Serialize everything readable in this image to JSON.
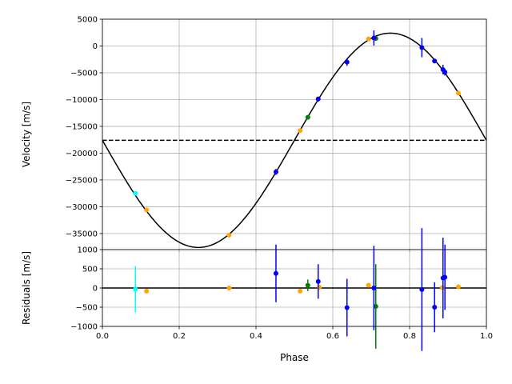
{
  "chart_data": [
    {
      "type": "scatter",
      "panel": "velocity",
      "xlabel": "",
      "ylabel": "Velocity [m/s]",
      "xlim": [
        0.0,
        1.0
      ],
      "ylim": [
        -38000,
        5000
      ],
      "xticks": [
        0.0,
        0.2,
        0.4,
        0.6,
        0.8,
        1.0
      ],
      "yticks": [
        -35000,
        -30000,
        -25000,
        -20000,
        -15000,
        -10000,
        -5000,
        0,
        5000
      ],
      "grid": true,
      "systemic_velocity": -17600,
      "model": {
        "offset": -17600,
        "amplitude": 20000,
        "phase_of_min": 0.25
      },
      "series": [
        {
          "color": "#00ffff",
          "points": [
            [
              0.086,
              -27500,
              0
            ]
          ]
        },
        {
          "color": "#ffa500",
          "points": [
            [
              0.115,
              -30600,
              0
            ],
            [
              0.33,
              -35300,
              0
            ],
            [
              0.515,
              -15800,
              0
            ],
            [
              0.693,
              1300,
              0
            ],
            [
              0.927,
              -8800,
              0
            ]
          ]
        },
        {
          "color": "#008000",
          "points": [
            [
              0.535,
              -13300,
              0
            ],
            [
              0.712,
              1400,
              0
            ]
          ]
        },
        {
          "color": "#0000ff",
          "points": [
            [
              0.452,
              -23500,
              550
            ],
            [
              0.562,
              -9900,
              450
            ],
            [
              0.637,
              -3000,
              700
            ],
            [
              0.707,
              1500,
              1400
            ],
            [
              0.832,
              -300,
              1800
            ],
            [
              0.865,
              -2800,
              400
            ],
            [
              0.887,
              -4400,
              900
            ],
            [
              0.892,
              -4900,
              600
            ]
          ]
        }
      ]
    },
    {
      "type": "scatter",
      "panel": "residuals",
      "xlabel": "Phase",
      "ylabel": "Residuals [m/s]",
      "xlim": [
        0.0,
        1.0
      ],
      "ylim": [
        -1000,
        1000
      ],
      "xticks": [
        0.0,
        0.2,
        0.4,
        0.6,
        0.8,
        1.0
      ],
      "yticks": [
        -1000,
        -500,
        0,
        500,
        1000
      ],
      "grid": true,
      "zero_line": 0,
      "series": [
        {
          "color": "#00ffff",
          "points": [
            [
              0.086,
              -30,
              600
            ]
          ]
        },
        {
          "color": "#ffa500",
          "points": [
            [
              0.115,
              -80,
              0
            ],
            [
              0.33,
              0,
              0
            ],
            [
              0.515,
              -80,
              0
            ],
            [
              0.565,
              20,
              0
            ],
            [
              0.693,
              70,
              0
            ],
            [
              0.885,
              10,
              0
            ],
            [
              0.927,
              30,
              0
            ]
          ]
        },
        {
          "color": "#008000",
          "points": [
            [
              0.535,
              70,
              150
            ],
            [
              0.712,
              -480,
              1100
            ]
          ]
        },
        {
          "color": "#0000ff",
          "points": [
            [
              0.452,
              380,
              750
            ],
            [
              0.562,
              170,
              450
            ],
            [
              0.637,
              -510,
              750
            ],
            [
              0.707,
              0,
              1100
            ],
            [
              0.832,
              -40,
              1600
            ],
            [
              0.865,
              -500,
              650
            ],
            [
              0.887,
              260,
              1050
            ],
            [
              0.892,
              280,
              850
            ]
          ]
        }
      ]
    }
  ]
}
